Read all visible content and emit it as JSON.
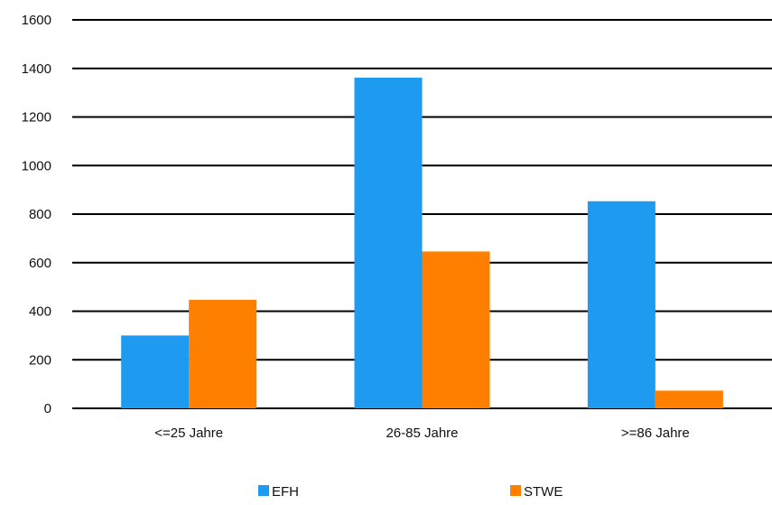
{
  "chart_data": {
    "type": "bar",
    "categories": [
      "<=25 Jahre",
      "26-85 Jahre",
      ">=86 Jahre"
    ],
    "series": [
      {
        "name": "EFH",
        "values": [
          300,
          1362,
          853
        ],
        "color": "#1e9bf0"
      },
      {
        "name": "STWE",
        "values": [
          447,
          646,
          73
        ],
        "color": "#ff8000"
      }
    ],
    "title": "",
    "xlabel": "",
    "ylabel": "",
    "ylim": [
      0,
      1600
    ],
    "yticks": [
      0,
      200,
      400,
      600,
      800,
      1000,
      1200,
      1400,
      1600
    ],
    "ytick_labels": [
      "0",
      "200",
      "400",
      "600",
      "800",
      "1000",
      "1200",
      "1400",
      "1600"
    ],
    "grid": true,
    "legend": "bottom"
  }
}
